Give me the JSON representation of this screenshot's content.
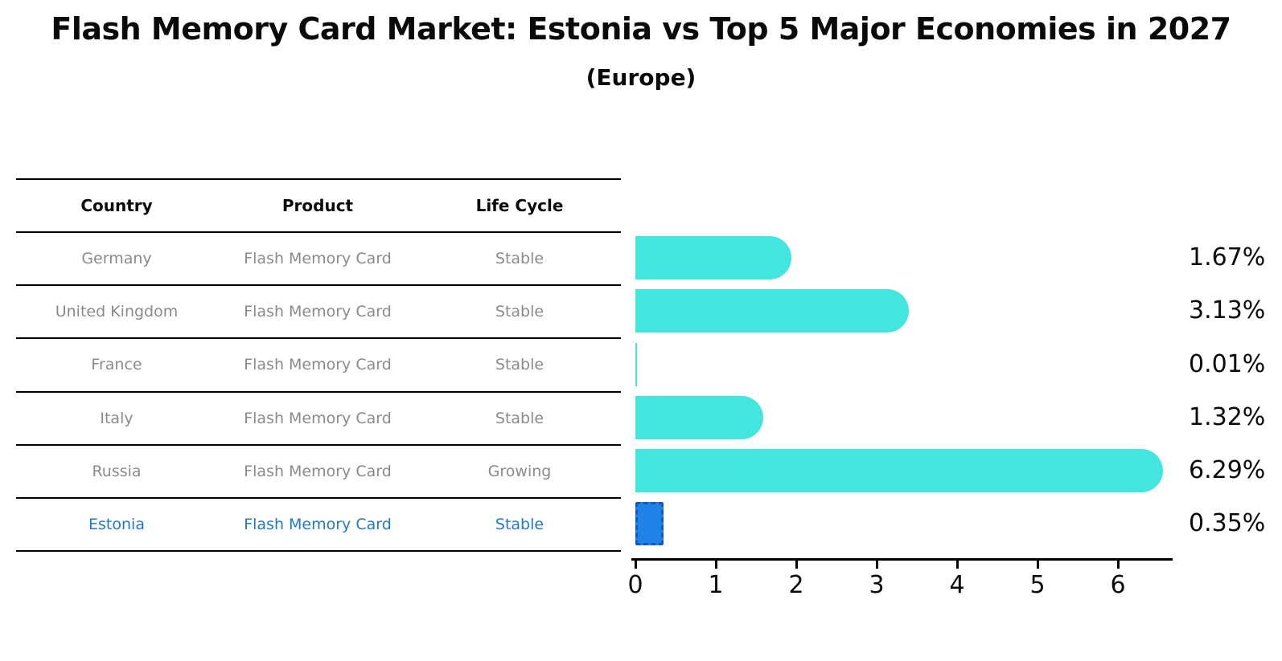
{
  "title": "Flash Memory Card Market: Estonia vs Top 5 Major Economies in 2027",
  "subtitle": "(Europe)",
  "table": {
    "headers": [
      "Country",
      "Product",
      "Life Cycle"
    ],
    "rows": [
      {
        "country": "Germany",
        "product": "Flash Memory Card",
        "life_cycle": "Stable",
        "highlight": false
      },
      {
        "country": "United Kingdom",
        "product": "Flash Memory Card",
        "life_cycle": "Stable",
        "highlight": false
      },
      {
        "country": "France",
        "product": "Flash Memory Card",
        "life_cycle": "Stable",
        "highlight": false
      },
      {
        "country": "Italy",
        "product": "Flash Memory Card",
        "life_cycle": "Stable",
        "highlight": false
      },
      {
        "country": "Russia",
        "product": "Flash Memory Card",
        "life_cycle": "Growing",
        "highlight": false
      },
      {
        "country": "Estonia",
        "product": "Flash Memory Card",
        "life_cycle": "Stable",
        "highlight": true
      }
    ]
  },
  "chart_data": {
    "type": "bar",
    "orientation": "horizontal",
    "categories": [
      "Germany",
      "United Kingdom",
      "France",
      "Italy",
      "Russia",
      "Estonia"
    ],
    "values": [
      1.67,
      3.13,
      0.01,
      1.32,
      6.29,
      0.35
    ],
    "value_labels": [
      "1.67%",
      "3.13%",
      "0.01%",
      "1.32%",
      "6.29%",
      "0.35%"
    ],
    "xticks": [
      "0",
      "1",
      "2",
      "3",
      "4",
      "5",
      "6"
    ],
    "xlim": [
      0,
      6.7
    ],
    "grid": false,
    "legend": false,
    "bar_color": "#42e6de",
    "highlight_bar_color": "#1e82e6",
    "highlight_border_color": "#1257c4",
    "highlight_text_color": "#2079c7",
    "highlight_index": 5
  }
}
